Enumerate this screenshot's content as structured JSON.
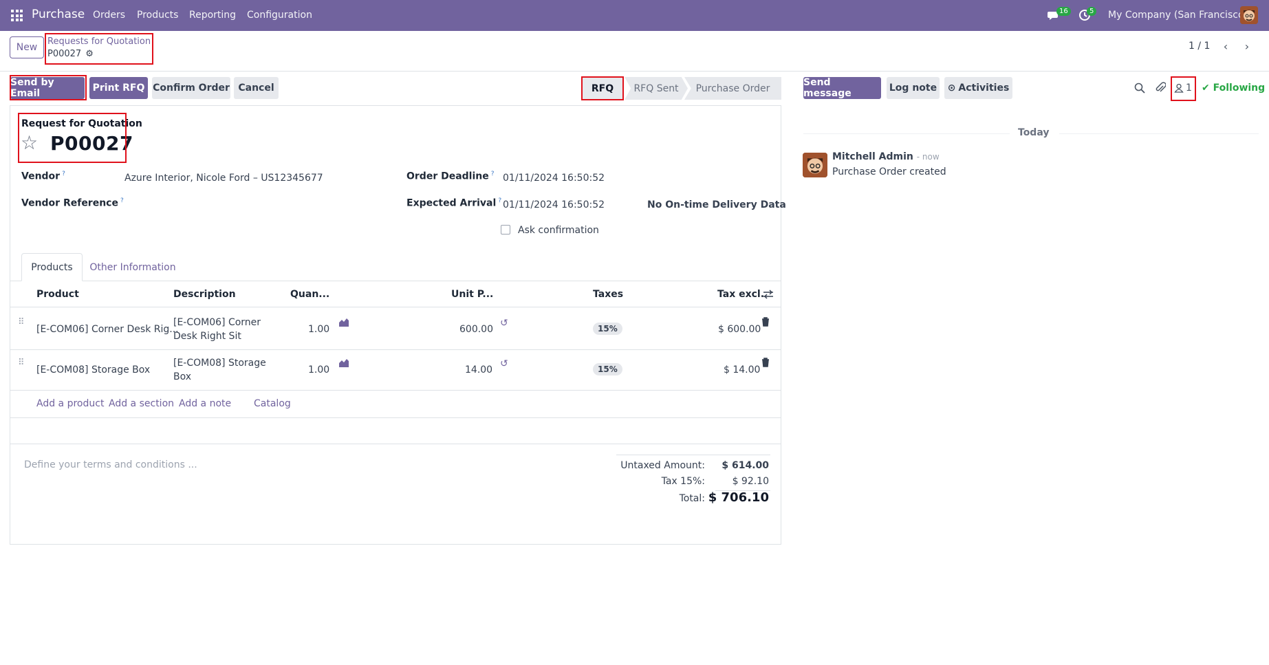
{
  "navbar": {
    "app_name": "Purchase",
    "menu": [
      "Orders",
      "Products",
      "Reporting",
      "Configuration"
    ],
    "messages_count": "16",
    "activities_count": "5",
    "company": "My Company (San Francisco)"
  },
  "control_panel": {
    "new_label": "New",
    "breadcrumb_parent": "Requests for Quotation",
    "breadcrumb_current": "P00027",
    "pager": "1 / 1"
  },
  "actions": {
    "send_email": "Send by Email",
    "print_rfq": "Print RFQ",
    "confirm_order": "Confirm Order",
    "cancel": "Cancel"
  },
  "stages": [
    "RFQ",
    "RFQ Sent",
    "Purchase Order"
  ],
  "form": {
    "title_small": "Request for Quotation",
    "title_big": "P00027",
    "vendor_label": "Vendor",
    "vendor_value": "Azure Interior, Nicole Ford – US12345677",
    "vendor_ref_label": "Vendor Reference",
    "order_deadline_label": "Order Deadline",
    "order_deadline_value": "01/11/2024 16:50:52",
    "expected_arrival_label": "Expected Arrival",
    "expected_arrival_value": "01/11/2024 16:50:52",
    "no_ontime": "No On-time Delivery Data",
    "ask_confirmation": "Ask confirmation",
    "help_mark": "?"
  },
  "tabs": [
    "Products",
    "Other Information"
  ],
  "table": {
    "headers": {
      "product": "Product",
      "description": "Description",
      "quantity": "Quan...",
      "unit_price": "Unit P...",
      "taxes": "Taxes",
      "tax_excl": "Tax excl."
    },
    "rows": [
      {
        "product": "[E-COM06] Corner Desk Rig...",
        "desc1": "[E-COM06] Corner",
        "desc2": "Desk Right Sit",
        "qty": "1.00",
        "price": "600.00",
        "tax": "15%",
        "subtotal": "$ 600.00"
      },
      {
        "product": "[E-COM08] Storage Box",
        "desc1": "[E-COM08] Storage",
        "desc2": "Box",
        "qty": "1.00",
        "price": "14.00",
        "tax": "15%",
        "subtotal": "$ 14.00"
      }
    ],
    "add_product": "Add a product",
    "add_section": "Add a section",
    "add_note": "Add a note",
    "catalog": "Catalog"
  },
  "terms_placeholder": "Define your terms and conditions ...",
  "totals": {
    "untaxed_label": "Untaxed Amount:",
    "untaxed_value": "$ 614.00",
    "tax_label": "Tax 15%:",
    "tax_value": "$ 92.10",
    "total_label": "Total:",
    "total_value": "$ 706.10"
  },
  "chatter": {
    "send_message": "Send message",
    "log_note": "Log note",
    "activities": "Activities",
    "followers_count": "1",
    "following": "Following",
    "today": "Today",
    "author": "Mitchell Admin",
    "time": "now",
    "body": "Purchase Order created"
  },
  "colors": {
    "brand": "#71639e",
    "highlight": "#e0111b",
    "success": "#28a745"
  }
}
